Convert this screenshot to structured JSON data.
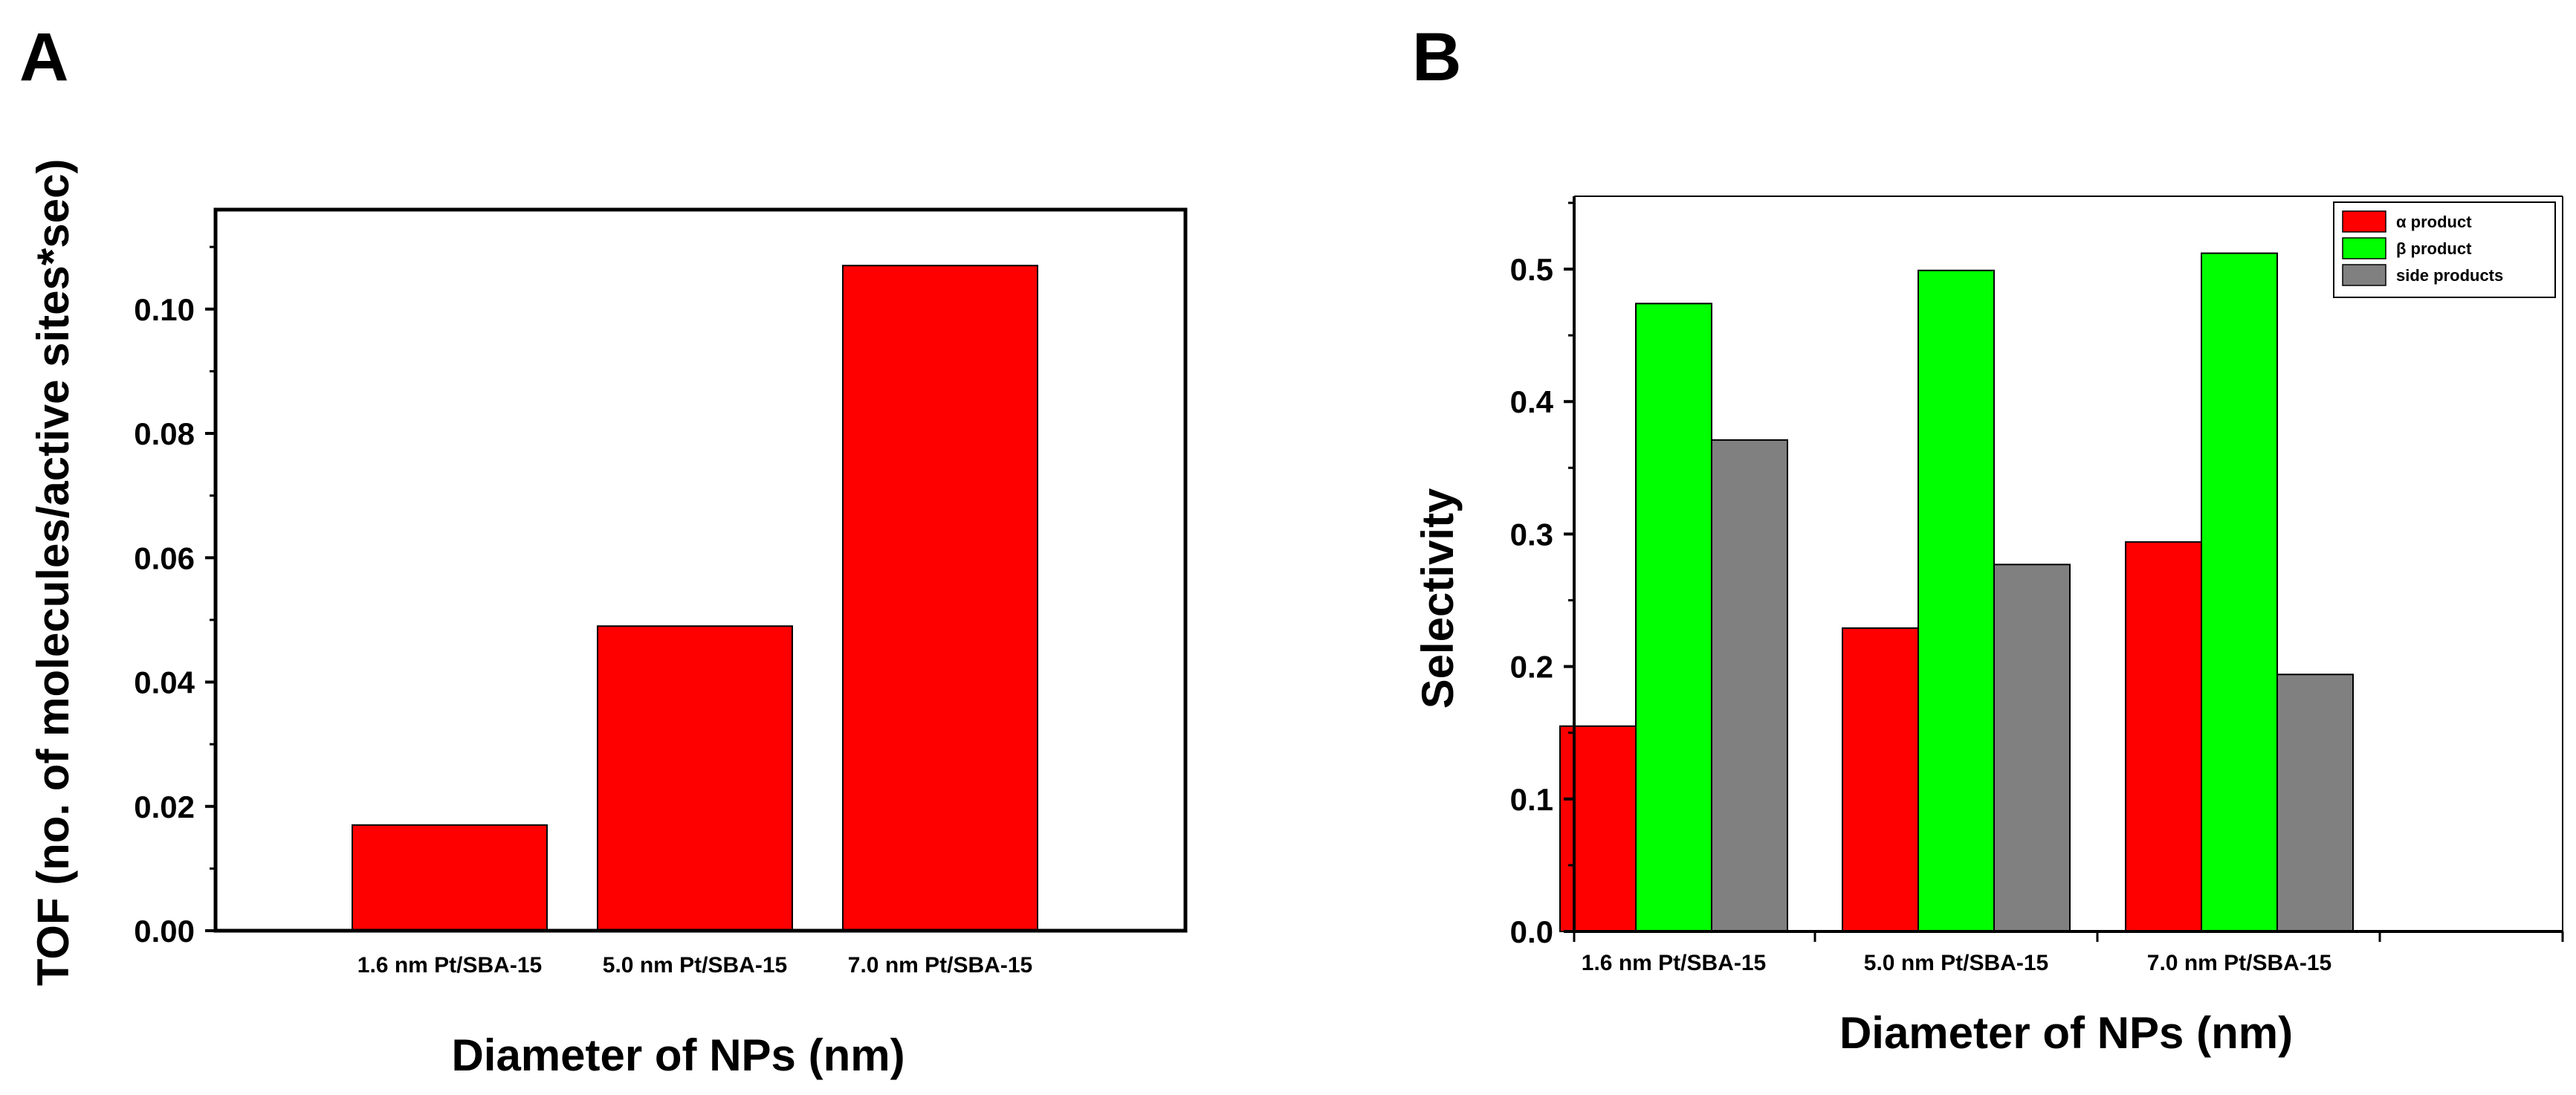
{
  "panels": {
    "a": "A",
    "b": "B"
  },
  "chart_data": [
    {
      "type": "bar",
      "panel": "A",
      "categories": [
        "1.6 nm Pt/SBA-15",
        "5.0 nm Pt/SBA-15",
        "7.0 nm Pt/SBA-15"
      ],
      "values": [
        0.017,
        0.049,
        0.107
      ],
      "color": "#ff0000",
      "xlabel": "Diameter of NPs (nm)",
      "ylabel": "TOF (no. of molecules/active sites*sec)",
      "ylim": [
        0,
        0.116
      ],
      "yticks": [
        "0.00",
        "0.02",
        "0.04",
        "0.06",
        "0.08",
        "0.10"
      ]
    },
    {
      "type": "bar",
      "panel": "B",
      "categories": [
        "1.6 nm Pt/SBA-15",
        "5.0 nm Pt/SBA-15",
        "7.0 nm Pt/SBA-15"
      ],
      "series": [
        {
          "name": "α product",
          "color": "#ff0000",
          "values": [
            0.155,
            0.229,
            0.294
          ]
        },
        {
          "name": "β product",
          "color": "#00ff00",
          "values": [
            0.474,
            0.499,
            0.512
          ]
        },
        {
          "name": "side products",
          "color": "#808080",
          "values": [
            0.371,
            0.277,
            0.194
          ]
        }
      ],
      "xlabel": "Diameter of NPs (nm)",
      "ylabel": "Selectivity",
      "ylim": [
        0,
        0.555
      ],
      "yticks": [
        "0.0",
        "0.1",
        "0.2",
        "0.3",
        "0.4",
        "0.5"
      ],
      "legend": "top-right"
    }
  ]
}
